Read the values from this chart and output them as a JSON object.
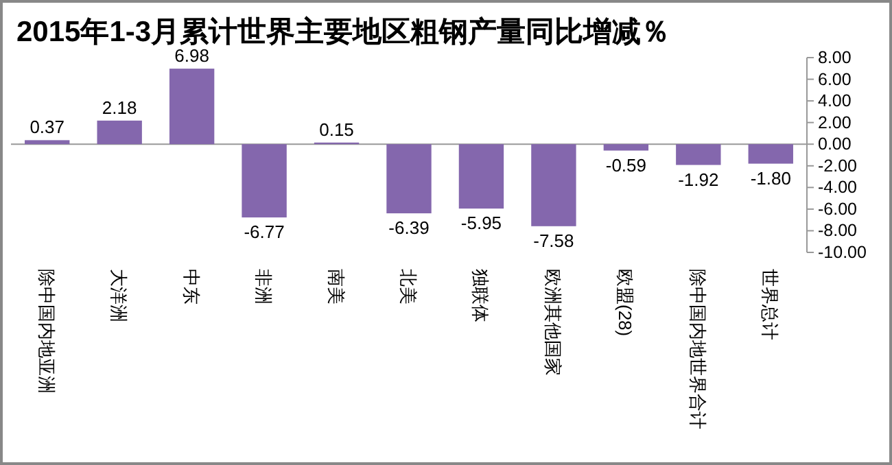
{
  "chart_data": {
    "type": "bar",
    "title": "2015年1-3月累计世界主要地区粗钢产量同比增减％",
    "categories": [
      "除中国内地亚洲",
      "大洋洲",
      "中东",
      "非洲",
      "南美",
      "北美",
      "独联体",
      "欧洲其他国家",
      "欧盟(28)",
      "除中国内地世界合计",
      "世界总计"
    ],
    "values": [
      0.37,
      2.18,
      6.98,
      -6.77,
      0.15,
      -6.39,
      -5.95,
      -7.58,
      -0.59,
      -1.92,
      -1.8
    ],
    "value_labels": [
      "0.37",
      "2.18",
      "6.98",
      "-6.77",
      "0.15",
      "-6.39",
      "-5.95",
      "-7.58",
      "-0.59",
      "-1.92",
      "-1.80"
    ],
    "color": "#8467ad",
    "ylim": [
      -10,
      8
    ],
    "yticks": [
      {
        "value": 8,
        "label": "8.00"
      },
      {
        "value": 6,
        "label": "6.00"
      },
      {
        "value": 4,
        "label": "4.00"
      },
      {
        "value": 2,
        "label": "2.00"
      },
      {
        "value": 0,
        "label": "0.00"
      },
      {
        "value": -2,
        "label": "-2.00"
      },
      {
        "value": -4,
        "label": "-4.00"
      },
      {
        "value": -6,
        "label": "-6.00"
      },
      {
        "value": -8,
        "label": "-8.00"
      },
      {
        "value": -10,
        "label": "-10.00"
      }
    ]
  }
}
